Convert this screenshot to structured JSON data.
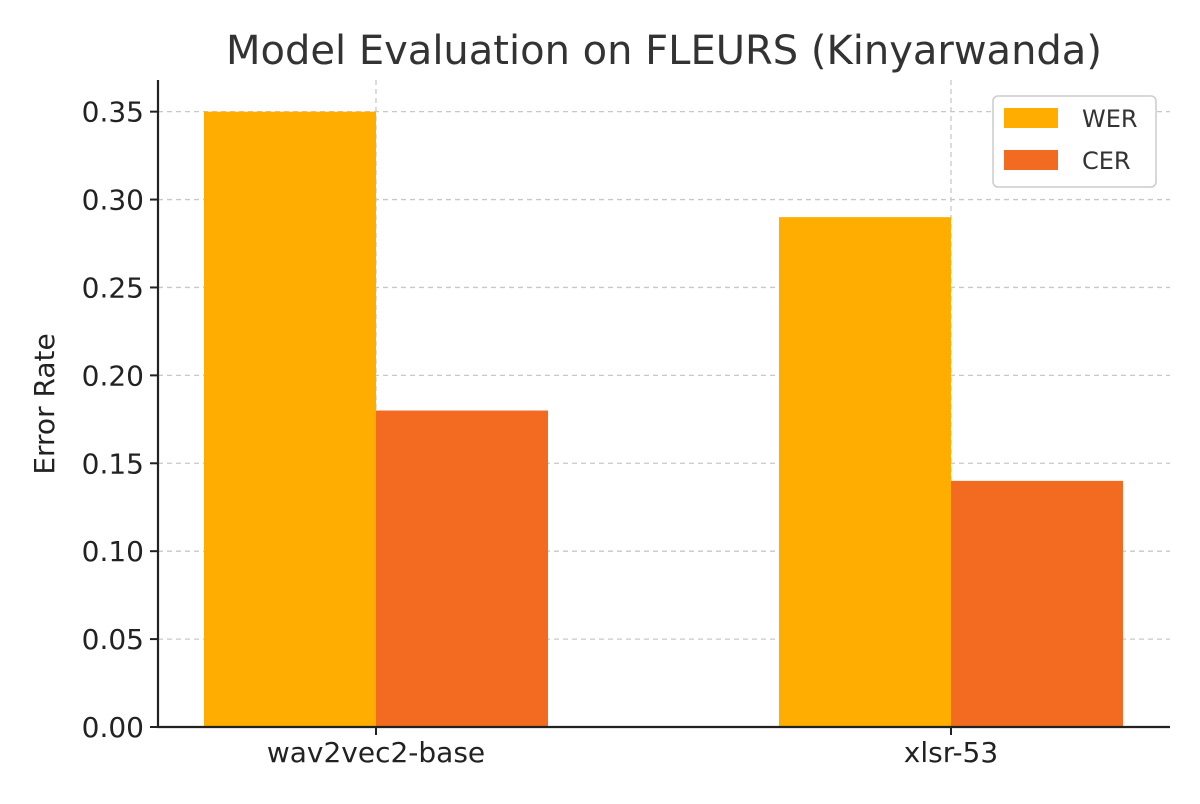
{
  "chart_data": {
    "type": "bar",
    "title": "Model Evaluation on FLEURS (Kinyarwanda)",
    "xlabel": "",
    "ylabel": "Error Rate",
    "categories": [
      "wav2vec2-base",
      "xlsr-53"
    ],
    "series": [
      {
        "name": "WER",
        "values": [
          0.35,
          0.29
        ],
        "color": "#FFAE00"
      },
      {
        "name": "CER",
        "values": [
          0.18,
          0.14
        ],
        "color": "#F26B21"
      }
    ],
    "ylim": [
      0,
      0.368
    ],
    "yticks": [
      "0.00",
      "0.05",
      "0.10",
      "0.15",
      "0.20",
      "0.25",
      "0.30",
      "0.35"
    ],
    "grid": true,
    "legend_position": "top-right"
  }
}
